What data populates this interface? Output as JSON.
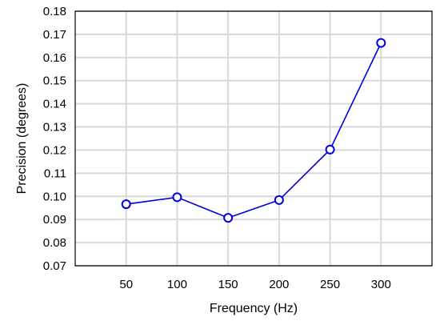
{
  "chart_data": {
    "type": "line",
    "title": "",
    "xlabel": "Frequency (Hz)",
    "ylabel": "Precision (degrees)",
    "x": [
      50,
      100,
      150,
      200,
      250,
      300
    ],
    "x_tick_labels": [
      "50",
      "100",
      "150",
      "200",
      "250",
      "300"
    ],
    "xlim": [
      0,
      350
    ],
    "ylim": [
      0.07,
      0.18
    ],
    "y_ticks": [
      0.07,
      0.08,
      0.09,
      0.1,
      0.11,
      0.12,
      0.13,
      0.14,
      0.15,
      0.16,
      0.17,
      0.18
    ],
    "y_tick_labels": [
      "0.07",
      "0.08",
      "0.09",
      "0.10",
      "0.11",
      "0.12",
      "0.13",
      "0.14",
      "0.15",
      "0.16",
      "0.17",
      "0.18"
    ],
    "grid": true,
    "legend": "none",
    "series": [
      {
        "values": [
          0.0966,
          0.0996,
          0.0907,
          0.0984,
          0.1202,
          0.1663
        ],
        "error": [
          0.0013,
          0.0013,
          0.0013,
          0.0013,
          0.0013,
          0.0013
        ],
        "color": "#0000e0",
        "marker": "open-circle"
      }
    ]
  }
}
